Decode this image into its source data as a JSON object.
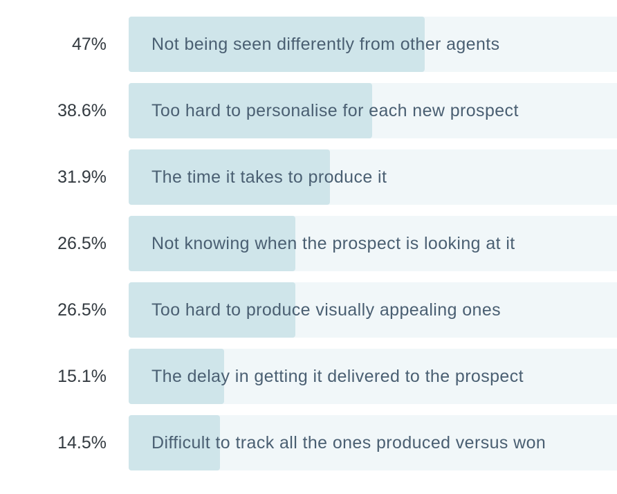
{
  "chart_data": {
    "type": "bar",
    "orientation": "horizontal",
    "xlim": [
      0,
      77.5
    ],
    "bars": [
      {
        "value": 47,
        "value_label": "47%",
        "category": "Not being seen differently from other agents"
      },
      {
        "value": 38.6,
        "value_label": "38.6%",
        "category": "Too hard to personalise for each new prospect"
      },
      {
        "value": 31.9,
        "value_label": "31.9%",
        "category": "The time it takes to produce it"
      },
      {
        "value": 26.5,
        "value_label": "26.5%",
        "category": "Not knowing when the prospect is looking at it"
      },
      {
        "value": 26.5,
        "value_label": "26.5%",
        "category": "Too hard to produce visually appealing ones"
      },
      {
        "value": 15.1,
        "value_label": "15.1%",
        "category": "The delay in getting it delivered to the prospect"
      },
      {
        "value": 14.5,
        "value_label": "14.5%",
        "category": "Difficult to track all the ones produced versus won"
      }
    ],
    "colors": {
      "fill": "#cfe5ea",
      "track": "#f1f7f9",
      "label": "#4a5f72",
      "value": "#333a40"
    }
  }
}
